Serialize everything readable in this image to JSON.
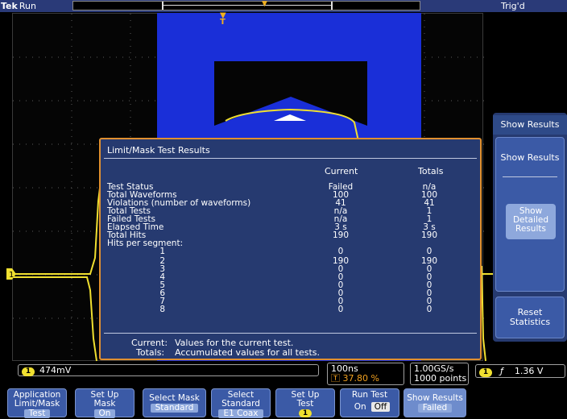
{
  "status": {
    "brand": "Tek",
    "acq_state": "Run",
    "trigger_state": "Trig'd"
  },
  "dialog": {
    "title": "Limit/Mask Test Results",
    "col_current": "Current",
    "col_totals": "Totals",
    "rows": [
      {
        "label": "Test Status",
        "current": "Failed",
        "totals": "n/a"
      },
      {
        "label": "Total Waveforms",
        "current": "100",
        "totals": "100"
      },
      {
        "label": "Violations (number of waveforms)",
        "current": "41",
        "totals": "41"
      },
      {
        "label": "Total Tests",
        "current": "n/a",
        "totals": "1"
      },
      {
        "label": "Failed Tests",
        "current": "n/a",
        "totals": "1"
      },
      {
        "label": "Elapsed Time",
        "current": "3 s",
        "totals": "3 s"
      },
      {
        "label": "Total Hits",
        "current": "190",
        "totals": "190"
      },
      {
        "label": "Hits per segment:",
        "current": "",
        "totals": ""
      }
    ],
    "segments": [
      {
        "seg": "1",
        "current": "0",
        "totals": "0"
      },
      {
        "seg": "2",
        "current": "190",
        "totals": "190"
      },
      {
        "seg": "3",
        "current": "0",
        "totals": "0"
      },
      {
        "seg": "4",
        "current": "0",
        "totals": "0"
      },
      {
        "seg": "5",
        "current": "0",
        "totals": "0"
      },
      {
        "seg": "6",
        "current": "0",
        "totals": "0"
      },
      {
        "seg": "7",
        "current": "0",
        "totals": "0"
      },
      {
        "seg": "8",
        "current": "0",
        "totals": "0"
      }
    ],
    "foot_current_label": "Current:",
    "foot_current_text": "Values for the current test.",
    "foot_totals_label": "Totals:",
    "foot_totals_text": "Accumulated values for all tests."
  },
  "side_menu": {
    "title": "Show Results",
    "main_label": "Show Results",
    "detail_label_1": "Show",
    "detail_label_2": "Detailed",
    "detail_label_3": "Results",
    "reset_label_1": "Reset",
    "reset_label_2": "Statistics"
  },
  "readouts": {
    "ch1_badge": "1",
    "ch1_scale": "474mV",
    "timebase": "100ns",
    "trigger_position": "37.80 %",
    "sample_rate": "1.00GS/s",
    "record_length": "1000 points",
    "trig_badge": "1",
    "trig_level": "1.36 V"
  },
  "bottom_menu": {
    "application_l1": "Application",
    "application_l2": "Limit/Mask",
    "application_value": "Test",
    "setup_mask_l1": "Set Up",
    "setup_mask_l2": "Mask",
    "setup_mask_value": "On",
    "select_mask_l1": "Select Mask",
    "select_mask_value": "Standard",
    "select_std_l1": "Select",
    "select_std_l2": "Standard",
    "select_std_value": "E1 Coax",
    "setup_test_l1": "Set Up",
    "setup_test_l2": "Test",
    "setup_test_badge": "1",
    "run_test_l1": "Run Test",
    "run_test_on": "On",
    "run_test_off": "Off",
    "show_results_l1": "Show Results",
    "show_results_value": "Failed"
  },
  "colors": {
    "mask": "#1a2fd8",
    "trace": "#f0e030",
    "panel": "#263a70",
    "accent_border": "#e09030"
  }
}
